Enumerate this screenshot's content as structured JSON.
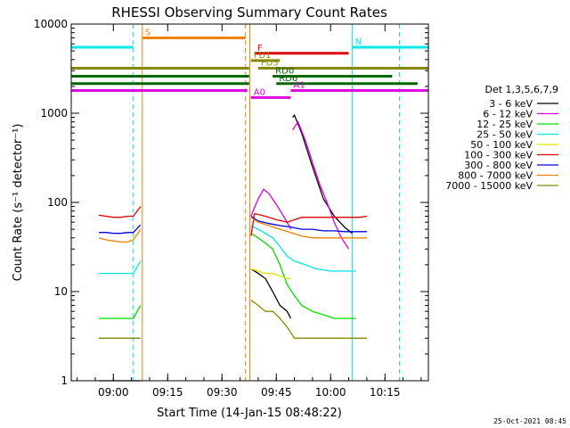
{
  "chart_data": {
    "type": "line",
    "title": "RHESSI Observing Summary Count Rates",
    "xlabel": "Start Time (14-Jan-15 08:48:22)",
    "ylabel": "Count Rate (s⁻¹ detector⁻¹)",
    "yscale": "log",
    "xlim": [
      "08:48:22",
      "10:27:00"
    ],
    "ylim": [
      1,
      10000
    ],
    "x_ticks": [
      "09:00",
      "09:15",
      "09:30",
      "09:45",
      "10:00",
      "10:15"
    ],
    "y_ticks": [
      "1",
      "10",
      "100",
      "1000",
      "10000"
    ],
    "legend_title": "Det 1,3,5,6,7,9",
    "legend_position": "right",
    "series": [
      {
        "name": "3 - 6 keV",
        "color": "#000000",
        "segments": [
          {
            "x": [
              "08:56:00",
              "09:02:00",
              "09:05:30",
              "09:06:30",
              "09:07:30"
            ],
            "y": [
              1.0,
              1.0,
              1.0,
              1.0,
              1.0
            ]
          },
          {
            "x": [
              "09:38:00",
              "09:40:00",
              "09:42:00",
              "09:44:00",
              "09:46:00",
              "09:48:00",
              "09:49:00"
            ],
            "y": [
              18,
              16,
              14,
              10,
              7,
              6,
              5
            ]
          },
          {
            "x": [
              "09:49:30",
              "09:50:00",
              "09:52:00",
              "09:55:00",
              "09:58:00",
              "10:01:00",
              "10:04:00",
              "10:06:00"
            ],
            "y": [
              900,
              950,
              600,
              250,
              110,
              70,
              52,
              45
            ]
          }
        ]
      },
      {
        "name": "6 - 12 keV",
        "color": "#e000e0",
        "segments": [
          {
            "x": [
              "09:38:00",
              "09:40:00",
              "09:41:30",
              "09:43:00",
              "09:45:00",
              "09:47:00",
              "09:48:30",
              "09:49:00"
            ],
            "y": [
              70,
              110,
              140,
              125,
              95,
              70,
              55,
              50
            ]
          },
          {
            "x": [
              "09:49:30",
              "09:51:00",
              "09:53:00",
              "09:55:00",
              "09:57:00",
              "09:59:00",
              "10:01:00",
              "10:03:00",
              "10:05:00"
            ],
            "y": [
              650,
              800,
              500,
              280,
              160,
              100,
              60,
              40,
              30
            ]
          }
        ]
      },
      {
        "name": "12 - 25 keV",
        "color": "#00e000",
        "segments": [
          {
            "x": [
              "08:56:00",
              "08:58:00",
              "09:00:00",
              "09:02:00",
              "09:04:00",
              "09:05:30",
              "09:07:30"
            ],
            "y": [
              5,
              5,
              5,
              5,
              5,
              5,
              7
            ]
          },
          {
            "x": [
              "09:38:00",
              "09:40:00",
              "09:42:00",
              "09:44:00",
              "09:46:00",
              "09:48:00",
              "09:50:00",
              "09:52:00",
              "09:55:00",
              "09:58:00",
              "10:01:00",
              "10:04:00",
              "10:07:00"
            ],
            "y": [
              45,
              40,
              35,
              30,
              20,
              12,
              9,
              7,
              6,
              5.5,
              5,
              5,
              5
            ]
          }
        ]
      },
      {
        "name": "25 - 50 keV",
        "color": "#00e8e8",
        "segments": [
          {
            "x": [
              "08:56:00",
              "08:58:00",
              "09:00:00",
              "09:02:00",
              "09:04:00",
              "09:05:30",
              "09:07:30"
            ],
            "y": [
              16,
              16,
              16,
              16,
              16,
              16,
              22
            ]
          },
          {
            "x": [
              "09:38:00",
              "09:40:00",
              "09:42:00",
              "09:44:00",
              "09:46:00",
              "09:48:00",
              "09:50:00",
              "09:53:00",
              "09:56:00",
              "10:00:00",
              "10:04:00",
              "10:07:00"
            ],
            "y": [
              55,
              50,
              45,
              40,
              32,
              25,
              22,
              20,
              18,
              17,
              17,
              17
            ]
          }
        ]
      },
      {
        "name": "50 - 100 keV",
        "color": "#e0e000",
        "segments": [
          {
            "x": [
              "09:38:00",
              "09:40:00",
              "09:42:00",
              "09:44:00",
              "09:46:00",
              "09:48:00",
              "09:49:00"
            ],
            "y": [
              18,
              17,
              16,
              16,
              15,
              14,
              14
            ]
          }
        ]
      },
      {
        "name": "100 - 300 keV",
        "color": "#e00000",
        "segments": [
          {
            "x": [
              "08:56:00",
              "08:58:00",
              "09:00:00",
              "09:02:00",
              "09:04:00",
              "09:05:30",
              "09:07:30"
            ],
            "y": [
              72,
              70,
              68,
              68,
              70,
              70,
              90
            ]
          },
          {
            "x": [
              "09:38:00",
              "09:39:00",
              "09:42:00",
              "09:45:00",
              "09:48:00",
              "09:52:00",
              "09:56:00",
              "10:00:00",
              "10:04:00",
              "10:08:00",
              "10:10:00"
            ],
            "y": [
              42,
              75,
              70,
              64,
              60,
              68,
              68,
              68,
              68,
              68,
              70
            ]
          }
        ]
      },
      {
        "name": "300 - 800 keV",
        "color": "#0000e0",
        "segments": [
          {
            "x": [
              "08:56:00",
              "08:58:00",
              "09:00:00",
              "09:02:00",
              "09:04:00",
              "09:05:30",
              "09:07:30"
            ],
            "y": [
              46,
              46,
              45,
              45,
              46,
              46,
              56
            ]
          },
          {
            "x": [
              "09:38:00",
              "09:40:00",
              "09:43:00",
              "09:46:00",
              "09:49:00",
              "09:52:00",
              "09:55:00",
              "09:58:00",
              "10:01:00",
              "10:04:00",
              "10:07:00",
              "10:10:00"
            ],
            "y": [
              70,
              62,
              58,
              55,
              53,
              50,
              50,
              48,
              48,
              47,
              47,
              47
            ]
          }
        ]
      },
      {
        "name": "800 - 7000 keV",
        "color": "#f08000",
        "segments": [
          {
            "x": [
              "08:56:00",
              "08:58:00",
              "09:00:00",
              "09:02:00",
              "09:04:00",
              "09:05:30",
              "09:07:30"
            ],
            "y": [
              40,
              38,
              37,
              36,
              36,
              38,
              50
            ]
          },
          {
            "x": [
              "09:38:00",
              "09:40:00",
              "09:43:00",
              "09:46:00",
              "09:49:00",
              "09:52:00",
              "09:55:00",
              "09:58:00",
              "10:01:00",
              "10:04:00",
              "10:07:00",
              "10:10:00"
            ],
            "y": [
              68,
              60,
              55,
              50,
              46,
              42,
              40,
              40,
              40,
              40,
              40,
              40
            ]
          }
        ]
      },
      {
        "name": "7000 - 15000 keV",
        "color": "#888800",
        "segments": [
          {
            "x": [
              "08:56:00",
              "08:58:00",
              "09:00:00",
              "09:02:00",
              "09:04:00",
              "09:05:30",
              "09:07:30"
            ],
            "y": [
              3,
              3,
              3,
              3,
              3,
              3,
              3
            ]
          },
          {
            "x": [
              "09:38:00",
              "09:40:00",
              "09:42:00",
              "09:44:00",
              "09:46:00",
              "09:48:00",
              "09:50:00",
              "09:53:00",
              "09:56:00",
              "10:00:00",
              "10:04:00",
              "10:07:00",
              "10:10:00"
            ],
            "y": [
              8,
              7,
              6,
              6,
              5,
              4,
              3,
              3,
              3,
              3,
              3,
              3,
              3
            ]
          }
        ]
      }
    ],
    "vertical_markers": [
      {
        "time": "08:48:22",
        "color": "#00e8e8",
        "style": "solid"
      },
      {
        "time": "09:05:30",
        "color": "#00e8e8",
        "style": "dashed"
      },
      {
        "time": "09:08:00",
        "color": "#f08000",
        "style": "solid"
      },
      {
        "time": "09:36:30",
        "color": "#f08000",
        "style": "dashed"
      },
      {
        "time": "09:37:40",
        "color": "#f08000",
        "style": "solid"
      },
      {
        "time": "10:06:00",
        "color": "#00e8e8",
        "style": "solid"
      },
      {
        "time": "10:19:00",
        "color": "#00e8e8",
        "style": "dashed"
      }
    ],
    "state_bars": [
      {
        "label": "S",
        "color": "#f08000",
        "y": 7000,
        "segments": [
          [
            "09:08:00",
            "09:36:30"
          ]
        ]
      },
      {
        "label": "N",
        "color": "#00e8e8",
        "y": 5500,
        "segments": [
          [
            "08:48:22",
            "09:05:30"
          ],
          [
            "10:06:00",
            "10:27:00"
          ]
        ]
      },
      {
        "label": "F",
        "color": "#e00000",
        "y": 4700,
        "segments": [
          [
            "09:39:00",
            "10:05:00"
          ]
        ]
      },
      {
        "label": "FD1",
        "color": "#888800",
        "y": 3900,
        "segments": [
          [
            "09:38:00",
            "09:46:00"
          ]
        ]
      },
      {
        "label": "FD3",
        "color": "#888800",
        "y": 3200,
        "segments": [
          [
            "08:48:22",
            "09:37:30"
          ],
          [
            "09:40:00",
            "10:27:00"
          ]
        ]
      },
      {
        "label": "RD0",
        "color": "#006600",
        "y": 2600,
        "segments": [
          [
            "08:48:22",
            "09:37:30"
          ],
          [
            "09:44:00",
            "10:17:00"
          ]
        ]
      },
      {
        "label": "RD6",
        "color": "#006600",
        "y": 2150,
        "segments": [
          [
            "08:48:22",
            "09:37:30"
          ],
          [
            "09:45:00",
            "10:24:00"
          ]
        ]
      },
      {
        "label": "A1",
        "color": "#e000e0",
        "y": 1800,
        "segments": [
          [
            "08:48:22",
            "09:37:00"
          ],
          [
            "09:49:00",
            "10:27:00"
          ]
        ]
      },
      {
        "label": "A0",
        "color": "#e000e0",
        "y": 1500,
        "segments": [
          [
            "09:38:00",
            "09:49:00"
          ]
        ]
      }
    ]
  },
  "footer": {
    "timestamp": "25-Oct-2021 08:45"
  }
}
